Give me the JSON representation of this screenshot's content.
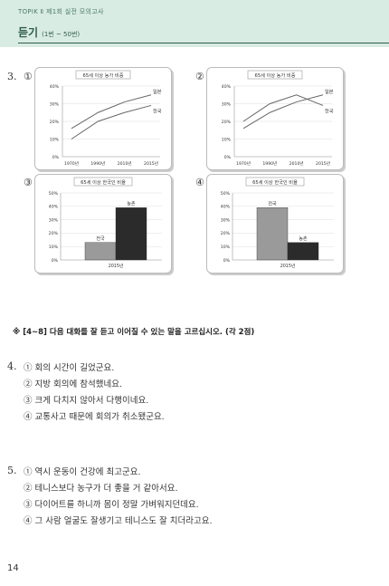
{
  "header": {
    "sub": "TOPIK Ⅱ  제1회 실전 모의고사",
    "title": "듣기",
    "range": "(1번 ~ 50번)"
  },
  "question3": {
    "number": "3.",
    "markers": [
      "①",
      "②",
      "③",
      "④"
    ]
  },
  "chart_data": [
    {
      "type": "line",
      "title": "65세 이상 농가 비중",
      "categories": [
        "1970년",
        "1990년",
        "2010년",
        "2015년"
      ],
      "yticks": [
        "0%",
        "10%",
        "20%",
        "30%",
        "40%"
      ],
      "ylim": [
        0,
        40
      ],
      "series": [
        {
          "name": "일본",
          "values": [
            16,
            25,
            31,
            35
          ]
        },
        {
          "name": "한국",
          "values": [
            10,
            20,
            25,
            29
          ]
        }
      ]
    },
    {
      "type": "line",
      "title": "65세 이상 농가 비중",
      "categories": [
        "1970년",
        "1990년",
        "2010년",
        "2015년"
      ],
      "yticks": [
        "0%",
        "10%",
        "20%",
        "30%",
        "40%"
      ],
      "ylim": [
        0,
        40
      ],
      "series": [
        {
          "name": "일본",
          "values": [
            16,
            25,
            31,
            35
          ]
        },
        {
          "name": "한국",
          "values": [
            20,
            30,
            35,
            29
          ]
        }
      ]
    },
    {
      "type": "bar",
      "title": "65세 이상 한국인 비율",
      "xlabel": "2015년",
      "yticks": [
        "0%",
        "10%",
        "20%",
        "30%",
        "40%",
        "50%"
      ],
      "ylim": [
        0,
        50
      ],
      "categories": [
        "전국",
        "농촌"
      ],
      "values": [
        13,
        39
      ]
    },
    {
      "type": "bar",
      "title": "65세 이상 한국인 비율",
      "xlabel": "2015년",
      "yticks": [
        "0%",
        "10%",
        "20%",
        "30%",
        "40%",
        "50%"
      ],
      "ylim": [
        0,
        50
      ],
      "categories": [
        "전국",
        "농촌"
      ],
      "values": [
        39,
        13
      ]
    }
  ],
  "instruction": "※ [4~8] 다음 대화를 잘 듣고 이어질 수 있는 말을 고르십시오. (각 2점)",
  "question4": {
    "number": "4.",
    "options": [
      "① 회의 시간이 길었군요.",
      "② 지방 회의에 참석했네요.",
      "③ 크게 다치지 않아서 다행이네요.",
      "④ 교통사고 때문에 회의가 취소됐군요."
    ]
  },
  "question5": {
    "number": "5.",
    "options": [
      "① 역시 운동이 건강에 최고군요.",
      "② 테니스보다 농구가 더 좋을 거 같아서요.",
      "③ 다이어트를 하니까 몸이 정말 가벼워지던데요.",
      "④ 그 사람 얼굴도 잘생기고 테니스도 잘 치더라고요."
    ]
  },
  "page_number": "14"
}
